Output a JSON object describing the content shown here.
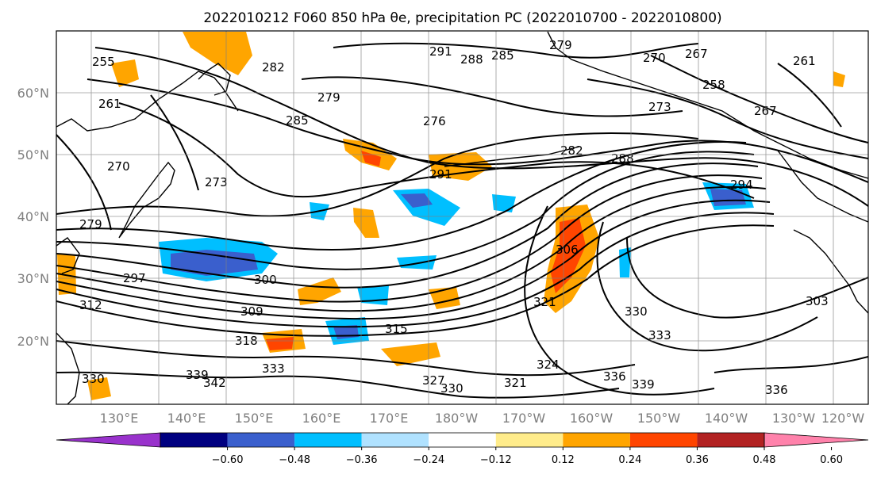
{
  "title": "2022010212 F060 850 hPa θe, precipitation PC (2022010700 - 2022010800)",
  "lat_labels": [
    "60°N",
    "50°N",
    "40°N",
    "30°N",
    "20°N"
  ],
  "lon_labels": [
    "130°E",
    "140°E",
    "150°E",
    "160°E",
    "170°E",
    "180°W",
    "170°W",
    "160°W",
    "150°W",
    "140°W",
    "130°W",
    "120°W"
  ],
  "colorbar": {
    "tick_labels": [
      "−0.60",
      "−0.48",
      "−0.36",
      "−0.24",
      "−0.12",
      "0.12",
      "0.24",
      "0.36",
      "0.48",
      "0.60"
    ],
    "colors": [
      "#9932cc",
      "#000080",
      "#3a5fcd",
      "#00bfff",
      "#b0e2ff",
      "#ffffff",
      "#ffec8b",
      "#ffa500",
      "#ff4500",
      "#b22222",
      "#ff82ab"
    ]
  },
  "contour_labels": [
    "255",
    "261",
    "291",
    "288",
    "285",
    "279",
    "270",
    "267",
    "261",
    "282",
    "279",
    "258",
    "285",
    "276",
    "273",
    "267",
    "282",
    "288",
    "291",
    "294",
    "270",
    "273",
    "279",
    "297",
    "300",
    "306",
    "303",
    "309",
    "312",
    "315",
    "318",
    "321",
    "330",
    "333",
    "336",
    "339",
    "324",
    "327",
    "330",
    "321",
    "330",
    "339",
    "342",
    "333",
    "336"
  ],
  "map_colors": {
    "land_line": "#000000",
    "grid": "#808080",
    "shade_pos": [
      "#ffa500",
      "#ff4500"
    ],
    "shade_neg": [
      "#00bfff",
      "#3a5fcd"
    ]
  }
}
